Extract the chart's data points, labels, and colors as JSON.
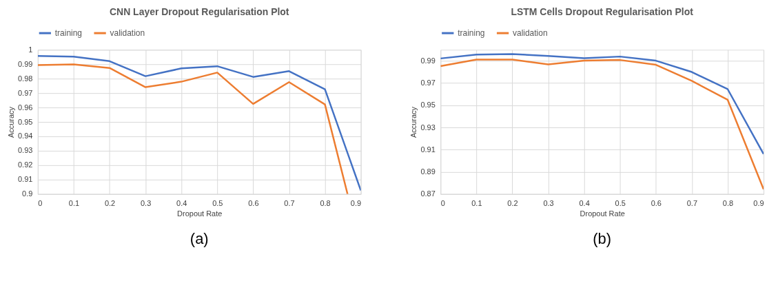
{
  "chart_data": [
    {
      "type": "line",
      "title": "CNN Layer Dropout Regularisation Plot",
      "xlabel": "Dropout Rate",
      "ylabel": "Accuracy",
      "x": [
        0,
        0.1,
        0.2,
        0.3,
        0.4,
        0.5,
        0.6,
        0.7,
        0.8,
        0.9
      ],
      "xlim": [
        0,
        0.9
      ],
      "xticks": [
        0,
        0.1,
        0.2,
        0.3,
        0.4,
        0.5,
        0.6,
        0.7,
        0.8,
        0.9
      ],
      "ylim": [
        0.9,
        1
      ],
      "yticks": [
        0.9,
        0.91,
        0.92,
        0.93,
        0.94,
        0.95,
        0.96,
        0.97,
        0.98,
        0.99,
        1
      ],
      "grid": true,
      "legend": "top",
      "marker": "none",
      "line_style": "solid",
      "annotations": [
        "(a)"
      ],
      "series": [
        {
          "name": "training",
          "color": "#4472c4",
          "values": [
            0.9957,
            0.9953,
            0.9921,
            0.9817,
            0.9871,
            0.9886,
            0.9812,
            0.9852,
            0.9726,
            0.9025
          ]
        },
        {
          "name": "validation",
          "color": "#ed7d31",
          "x": [
            0,
            0.1,
            0.2,
            0.3,
            0.4,
            0.5,
            0.6,
            0.7,
            0.8,
            0.863
          ],
          "values": [
            0.9894,
            0.9899,
            0.9874,
            0.9741,
            0.9779,
            0.9842,
            0.9625,
            0.9776,
            0.9621,
            0.9
          ]
        }
      ]
    },
    {
      "type": "line",
      "title": "LSTM Cells Dropout Regularisation Plot",
      "xlabel": "Dropout Rate",
      "ylabel": "Accuracy",
      "x": [
        0,
        0.1,
        0.2,
        0.3,
        0.4,
        0.5,
        0.6,
        0.7,
        0.8,
        0.9
      ],
      "xlim": [
        0,
        0.9
      ],
      "xticks": [
        0,
        0.1,
        0.2,
        0.3,
        0.4,
        0.5,
        0.6,
        0.7,
        0.8,
        0.9
      ],
      "ylim": [
        0.87,
        1
      ],
      "yticks": [
        0.87,
        0.89,
        0.91,
        0.93,
        0.95,
        0.97,
        0.99
      ],
      "grid": true,
      "legend": "top",
      "marker": "none",
      "line_style": "solid",
      "annotations": [
        "(b)"
      ],
      "series": [
        {
          "name": "training",
          "color": "#4472c4",
          "values": [
            0.9922,
            0.9957,
            0.9961,
            0.9945,
            0.9924,
            0.9939,
            0.9902,
            0.98,
            0.9645,
            0.9061
          ]
        },
        {
          "name": "validation",
          "color": "#ed7d31",
          "values": [
            0.9853,
            0.9912,
            0.9912,
            0.9869,
            0.9902,
            0.9908,
            0.9865,
            0.972,
            0.9549,
            0.8743
          ]
        }
      ]
    }
  ]
}
